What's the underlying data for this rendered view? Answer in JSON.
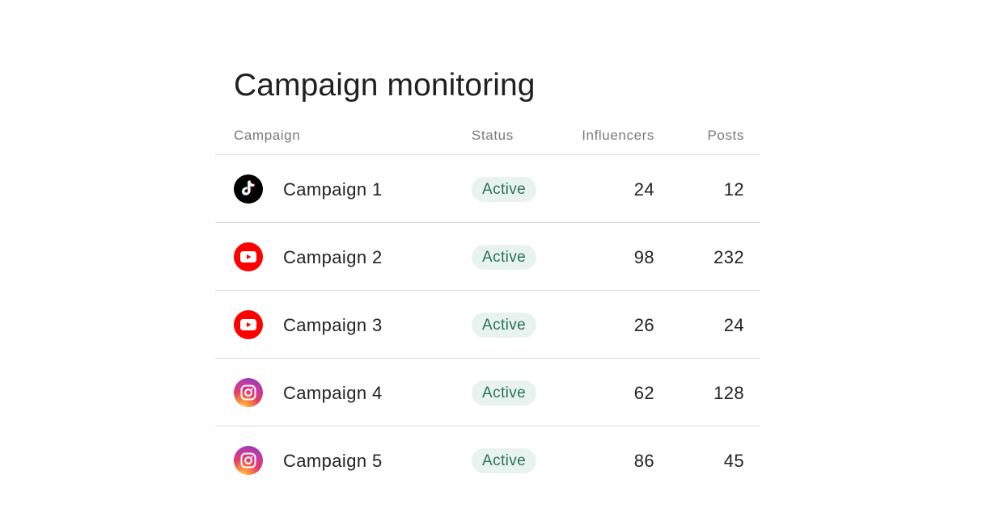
{
  "page": {
    "title": "Campaign monitoring"
  },
  "table": {
    "headers": {
      "campaign": "Campaign",
      "status": "Status",
      "influencers": "Influencers",
      "posts": "Posts"
    },
    "rows": [
      {
        "platform_icon": "tiktok-icon",
        "campaign": "Campaign 1",
        "status": "Active",
        "influencers": "24",
        "posts": "12"
      },
      {
        "platform_icon": "youtube-icon",
        "campaign": "Campaign 2",
        "status": "Active",
        "influencers": "98",
        "posts": "232"
      },
      {
        "platform_icon": "youtube-icon",
        "campaign": "Campaign 3",
        "status": "Active",
        "influencers": "26",
        "posts": "24"
      },
      {
        "platform_icon": "instagram-icon",
        "campaign": "Campaign 4",
        "status": "Active",
        "influencers": "62",
        "posts": "128"
      },
      {
        "platform_icon": "instagram-icon",
        "campaign": "Campaign 5",
        "status": "Active",
        "influencers": "86",
        "posts": "45"
      }
    ]
  },
  "colors": {
    "status_active_bg": "#e8f3ef",
    "status_active_text": "#27715a",
    "divider": "#dcdcdc",
    "youtube_red": "#ff0000",
    "tiktok_black": "#000000"
  }
}
